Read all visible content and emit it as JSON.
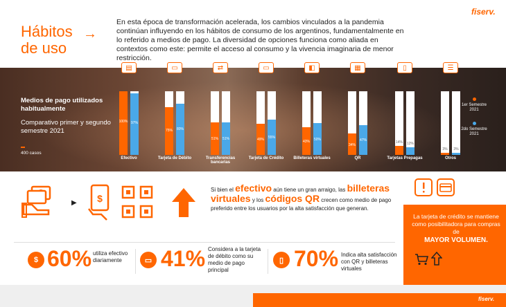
{
  "header": {
    "title": "Hábitos de uso",
    "intro": "En esta época de transformación acelerada, los cambios vinculados a la pandemia continúan influyendo en los hábitos de consumo de los argentinos, fundamentalmente en lo referido a medios de pago. La diversidad de opciones funciona como aliada en contextos como este: permite el acceso al consumo y la vivencia imaginaria de menor restricción.",
    "logo": "fiserv."
  },
  "band": {
    "label": "Medios de pago utilizados habitualmente",
    "sub": "Comparativo primer y segundo semestre 2021",
    "cases": "400 casos",
    "legend_first": "1er Semestre 2021",
    "legend_second": "2do Semestre 2021"
  },
  "colors": {
    "accent": "#ff6600",
    "second": "#4aa8e8"
  },
  "chart_data": {
    "type": "bar",
    "categories": [
      "Efectivo",
      "Tarjeta de Débito",
      "Transferencias bancarias",
      "Tarjeta de Crédito",
      "Billeteras virtuales",
      "QR",
      "Tarjetas Prepagas",
      "Otros"
    ],
    "series": [
      {
        "name": "1er Semestre 2021",
        "values": [
          100,
          75,
          51,
          49,
          43,
          34,
          14,
          3
        ]
      },
      {
        "name": "2do Semestre 2021",
        "values": [
          97,
          80,
          51,
          55,
          50,
          47,
          12,
          3
        ]
      }
    ],
    "value_labels": [
      [
        "100%",
        "75%",
        "51%",
        "49%",
        "43%",
        "34%",
        "14%",
        "3%"
      ],
      [
        "97%",
        "80%",
        "51%",
        "55%",
        "50%",
        "47%",
        "12%",
        "3%"
      ]
    ],
    "ylim": [
      0,
      100
    ]
  },
  "middle": {
    "t1": "Si bien el ",
    "w1": "efectivo",
    "t2": " aún tiene un gran arraigo, las ",
    "w2": "billeteras virtuales",
    "t3": " y los ",
    "w3": "códigos QR",
    "t4": " crecen como medio de pago preferido entre los usuarios por la alta satisfacción que generan."
  },
  "right_box": {
    "text": "La tarjeta de crédito se mantiene como posibilitadora para compras de",
    "strong": "MAYOR VOLUMEN."
  },
  "stats": [
    {
      "num": "60%",
      "label": "utiliza efectivo diariamente"
    },
    {
      "num": "41%",
      "label": "Considera a la tarjeta de débito como su medio de pago principal"
    },
    {
      "num": "70%",
      "label": "Indica alta satisfacción con QR y billeteras virtuales"
    }
  ],
  "footer": {
    "logo": "fiserv."
  }
}
